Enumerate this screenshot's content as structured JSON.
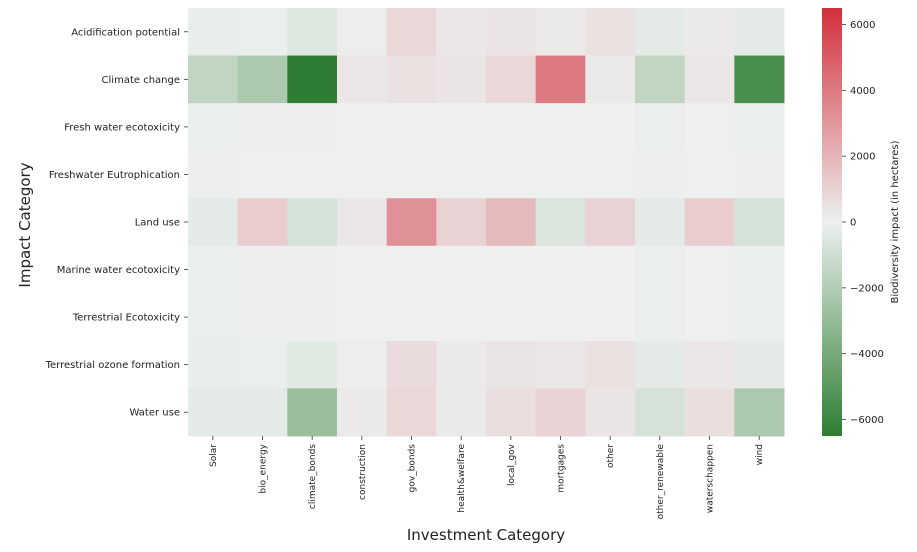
{
  "chart_data": {
    "type": "heatmap",
    "xlabel": "Investment Category",
    "ylabel": "Impact Category",
    "colorbar_label": "Biodiversity impact (in hectares)",
    "x_categories": [
      "Solar",
      "bio_energy",
      "climate_bonds",
      "construction",
      "gov_bonds",
      "health&welfare",
      "local_gov",
      "mortgages",
      "other",
      "other_renewable",
      "waterschappen",
      "wind"
    ],
    "y_categories": [
      "Acidification potential",
      "Climate change",
      "Fresh water ecotoxicity",
      "Freshwater Eutrophication",
      "Land use",
      "Marine water ecotoxicity",
      "Terrestrial Ecotoxicity",
      "Terrestrial ozone formation",
      "Water use"
    ],
    "values": [
      [
        -150,
        -100,
        -500,
        100,
        800,
        300,
        400,
        200,
        500,
        -300,
        200,
        -300
      ],
      [
        -1500,
        -2200,
        -6500,
        300,
        500,
        400,
        800,
        4000,
        200,
        -1500,
        300,
        -5500
      ],
      [
        -100,
        -50,
        -50,
        0,
        0,
        0,
        0,
        0,
        0,
        -100,
        0,
        -100
      ],
      [
        -50,
        0,
        0,
        0,
        0,
        0,
        0,
        0,
        0,
        -50,
        0,
        -50
      ],
      [
        -300,
        1200,
        -800,
        300,
        3200,
        1000,
        1800,
        -600,
        1000,
        -300,
        1200,
        -800
      ],
      [
        -100,
        -50,
        -50,
        0,
        0,
        0,
        0,
        0,
        0,
        -100,
        0,
        -100
      ],
      [
        -100,
        -50,
        -50,
        0,
        0,
        0,
        0,
        0,
        0,
        -100,
        0,
        -100
      ],
      [
        -150,
        -100,
        -400,
        100,
        700,
        200,
        400,
        300,
        500,
        -300,
        300,
        -300
      ],
      [
        -300,
        -300,
        -2800,
        200,
        800,
        200,
        600,
        1000,
        400,
        -800,
        600,
        -2200
      ]
    ],
    "colorbar": {
      "min": -6500,
      "max": 6500,
      "ticks": [
        -6000,
        -4000,
        -2000,
        0,
        2000,
        4000,
        6000
      ]
    },
    "colors": {
      "negative": "#2e7d32",
      "center": "#edf0ef",
      "positive": "#d32f3c"
    }
  }
}
